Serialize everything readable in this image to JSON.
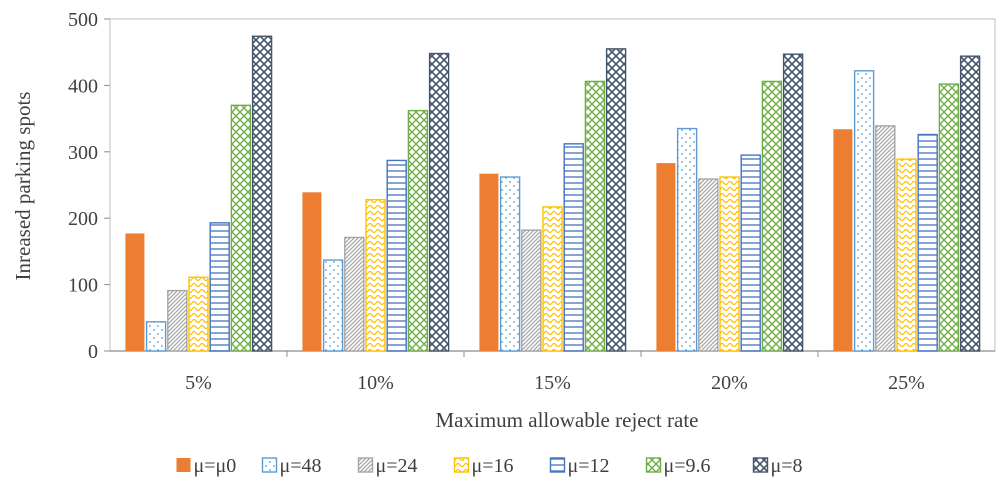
{
  "chart_data": {
    "type": "bar",
    "xlabel": "Maximum allowable reject rate",
    "ylabel": "Inreased parking spots",
    "categories": [
      "5%",
      "10%",
      "15%",
      "20%",
      "25%"
    ],
    "ylim": [
      0,
      500
    ],
    "yticks": [
      0,
      100,
      200,
      300,
      400,
      500
    ],
    "grid": false,
    "legend_position": "bottom",
    "series": [
      {
        "name": "μ=μ0",
        "color": "#ED7D31",
        "pattern": "solid",
        "values": [
          177,
          239,
          267,
          283,
          334
        ]
      },
      {
        "name": "μ=48",
        "color": "#5B9BD5",
        "pattern": "dots",
        "values": [
          44,
          137,
          262,
          335,
          422
        ]
      },
      {
        "name": "μ=24",
        "color": "#A5A5A5",
        "pattern": "diagonal",
        "values": [
          91,
          171,
          182,
          259,
          339
        ]
      },
      {
        "name": "μ=16",
        "color": "#FFC000",
        "pattern": "wave",
        "values": [
          111,
          228,
          217,
          262,
          289
        ]
      },
      {
        "name": "μ=12",
        "color": "#4472C4",
        "pattern": "horizontal",
        "values": [
          193,
          287,
          312,
          295,
          326
        ]
      },
      {
        "name": "μ=9.6",
        "color": "#70AD47",
        "pattern": "diamond",
        "values": [
          370,
          362,
          406,
          406,
          402
        ]
      },
      {
        "name": "μ=8",
        "color": "#44546A",
        "pattern": "diamond-dark",
        "values": [
          474,
          448,
          455,
          447,
          444
        ]
      }
    ]
  }
}
